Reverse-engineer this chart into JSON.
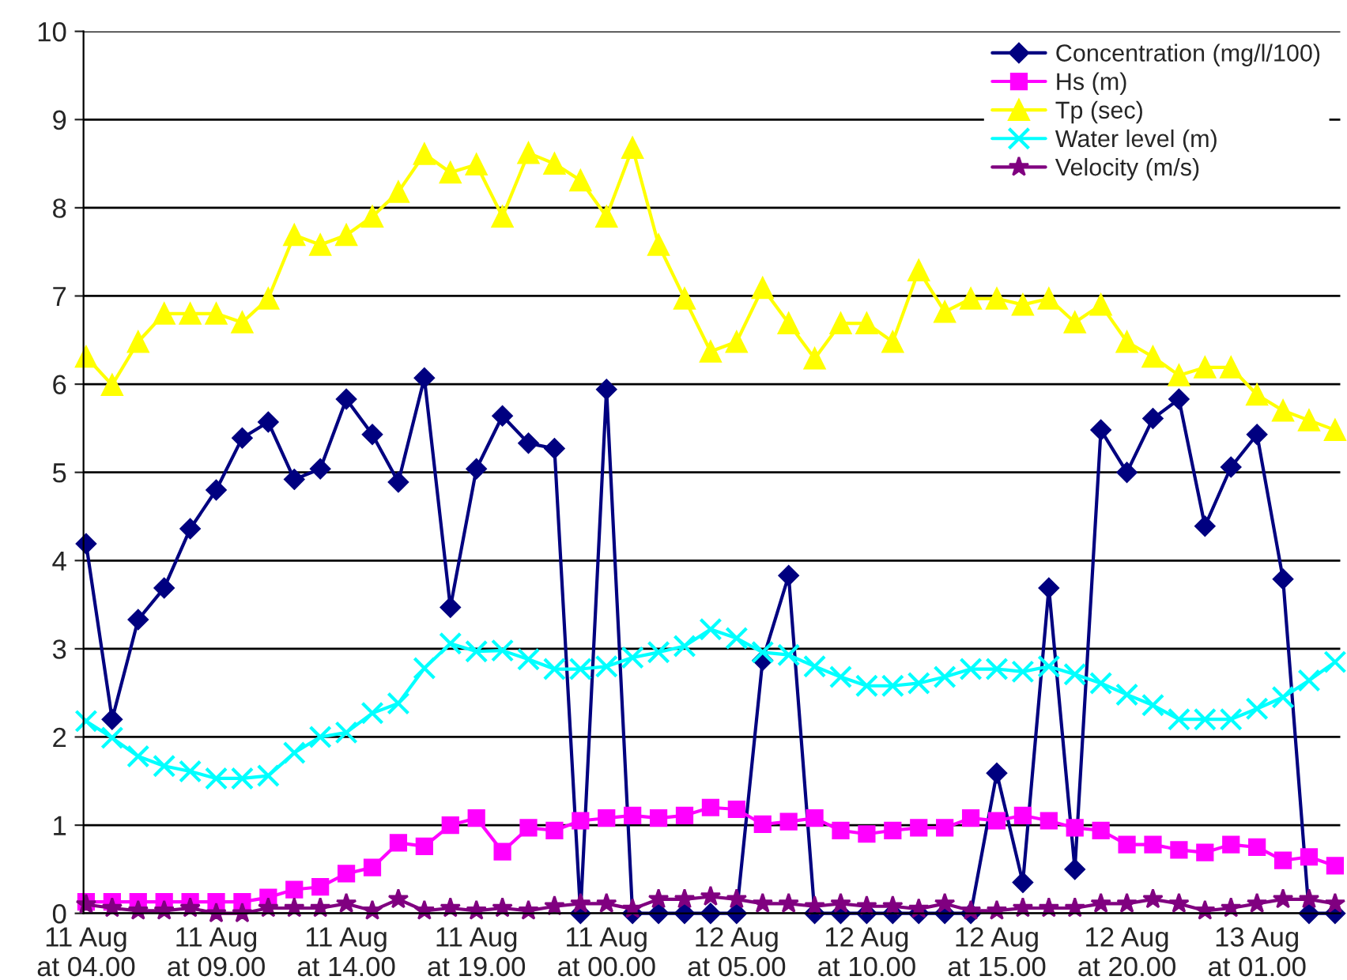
{
  "chart_data": {
    "type": "line",
    "categories": [
      "11 Aug\nat 04.00",
      null,
      null,
      null,
      null,
      "11 Aug\nat 09.00",
      null,
      null,
      null,
      null,
      "11 Aug\nat 14.00",
      null,
      null,
      null,
      null,
      "11 Aug\nat 19.00",
      null,
      null,
      null,
      null,
      "11 Aug\nat 00.00",
      null,
      null,
      null,
      null,
      "12 Aug\nat 05.00",
      null,
      null,
      null,
      null,
      "12 Aug\nat 10.00",
      null,
      null,
      null,
      null,
      "12 Aug\nat 15.00",
      null,
      null,
      null,
      null,
      "12 Aug\nat 20.00",
      null,
      null,
      null,
      null,
      "13 Aug\nat 01.00",
      null,
      null,
      null
    ],
    "series": [
      {
        "name": "Concentration (mg/l/100)",
        "color": "#000080",
        "marker": "diamond",
        "values": [
          4.19,
          2.2,
          3.33,
          3.69,
          4.36,
          4.8,
          5.39,
          5.57,
          4.92,
          5.04,
          5.83,
          5.43,
          4.89,
          6.07,
          3.47,
          5.04,
          5.64,
          5.33,
          5.27,
          0,
          5.94,
          0,
          0,
          0,
          0,
          0,
          2.87,
          3.83,
          0,
          0,
          0,
          0,
          0,
          0,
          0,
          1.59,
          0.35,
          3.69,
          0.5,
          5.48,
          5.0,
          5.61,
          5.83,
          4.39,
          5.06,
          5.43,
          3.79,
          0,
          0
        ]
      },
      {
        "name": "Hs (m)",
        "color": "#ff00ff",
        "marker": "square",
        "values": [
          0.13,
          0.13,
          0.13,
          0.13,
          0.13,
          0.13,
          0.13,
          0.18,
          0.27,
          0.3,
          0.45,
          0.52,
          0.8,
          0.76,
          1.0,
          1.08,
          0.7,
          0.97,
          0.94,
          1.05,
          1.08,
          1.11,
          1.08,
          1.11,
          1.2,
          1.18,
          1.01,
          1.04,
          1.08,
          0.94,
          0.9,
          0.94,
          0.97,
          0.97,
          1.08,
          1.05,
          1.11,
          1.05,
          0.97,
          0.94,
          0.78,
          0.78,
          0.72,
          0.69,
          0.78,
          0.75,
          0.6,
          0.64,
          0.54
        ]
      },
      {
        "name": "Tp (sec)",
        "color": "#ffff00",
        "marker": "triangle",
        "values": [
          6.31,
          5.99,
          6.48,
          6.8,
          6.8,
          6.8,
          6.7,
          6.97,
          7.69,
          7.58,
          7.69,
          7.9,
          8.18,
          8.61,
          8.4,
          8.49,
          7.9,
          8.62,
          8.5,
          8.31,
          7.9,
          8.68,
          7.58,
          6.97,
          6.37,
          6.48,
          7.09,
          6.69,
          6.29,
          6.69,
          6.69,
          6.48,
          7.29,
          6.82,
          6.97,
          6.97,
          6.9,
          6.97,
          6.7,
          6.9,
          6.48,
          6.31,
          6.1,
          6.19,
          6.19,
          5.88,
          5.7,
          5.59,
          5.48
        ]
      },
      {
        "name": "Water level (m)",
        "color": "#00ffff",
        "marker": "cross",
        "values": [
          2.18,
          1.99,
          1.78,
          1.67,
          1.61,
          1.53,
          1.53,
          1.56,
          1.82,
          2.0,
          2.05,
          2.27,
          2.38,
          2.78,
          3.06,
          2.97,
          2.98,
          2.88,
          2.77,
          2.77,
          2.8,
          2.9,
          2.96,
          3.03,
          3.22,
          3.12,
          2.96,
          2.93,
          2.8,
          2.68,
          2.58,
          2.58,
          2.61,
          2.68,
          2.77,
          2.77,
          2.74,
          2.8,
          2.71,
          2.61,
          2.48,
          2.36,
          2.2,
          2.2,
          2.2,
          2.32,
          2.45,
          2.64,
          2.85
        ]
      },
      {
        "name": "Velocity (m/s)",
        "color": "#800080",
        "marker": "star",
        "values": [
          0.1,
          0.06,
          0.03,
          0.03,
          0.06,
          0.0,
          0.0,
          0.06,
          0.06,
          0.06,
          0.11,
          0.03,
          0.16,
          0.03,
          0.06,
          0.03,
          0.06,
          0.03,
          0.08,
          0.11,
          0.11,
          0.05,
          0.16,
          0.16,
          0.19,
          0.16,
          0.11,
          0.11,
          0.08,
          0.11,
          0.08,
          0.08,
          0.05,
          0.11,
          0.03,
          0.03,
          0.06,
          0.06,
          0.06,
          0.11,
          0.11,
          0.16,
          0.11,
          0.03,
          0.06,
          0.11,
          0.16,
          0.16,
          0.11
        ]
      }
    ],
    "ylim": [
      0,
      10
    ],
    "yticks": [
      0,
      1,
      2,
      3,
      4,
      5,
      6,
      7,
      8,
      9,
      10
    ],
    "grid": "y",
    "legend": "top right",
    "line_style": "solid"
  }
}
